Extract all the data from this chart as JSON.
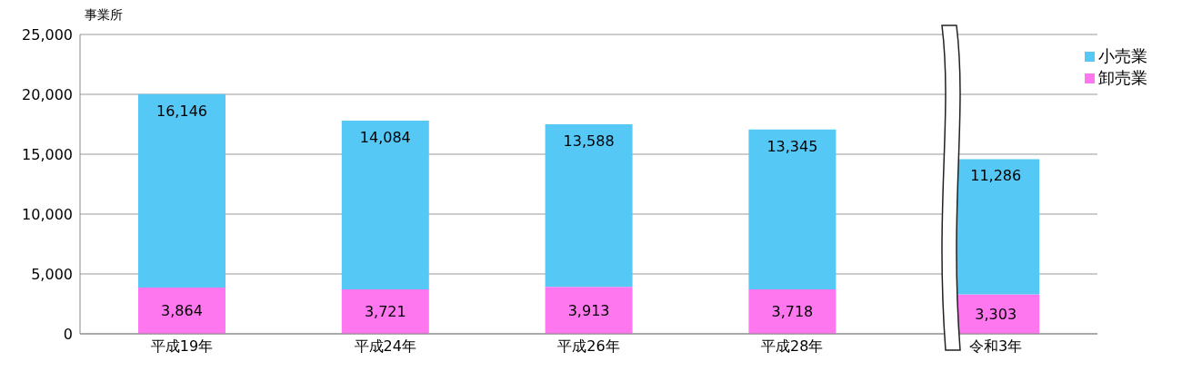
{
  "chart_data": {
    "type": "bar",
    "stacked": true,
    "ylabel": "事業所",
    "categories": [
      "平成19年",
      "平成24年",
      "平成26年",
      "平成28年",
      "令和3年"
    ],
    "series": [
      {
        "name": "卸売業",
        "color": "#ff77ee",
        "values": [
          3864,
          3721,
          3913,
          3718,
          3303
        ],
        "value_labels": [
          "3,864",
          "3,721",
          "3,913",
          "3,718",
          "3,303"
        ]
      },
      {
        "name": "小売業",
        "color": "#55c8f5",
        "values": [
          16146,
          14084,
          13588,
          13345,
          11286
        ],
        "value_labels": [
          "16,146",
          "14,084",
          "13,588",
          "13,345",
          "11,286"
        ]
      }
    ],
    "ylim": [
      0,
      25000
    ],
    "yticks": [
      {
        "value": 0,
        "label": "0"
      },
      {
        "value": 5000,
        "label": "5,000"
      },
      {
        "value": 10000,
        "label": "10,000"
      },
      {
        "value": 15000,
        "label": "15,000"
      },
      {
        "value": 20000,
        "label": "20,000"
      },
      {
        "value": 25000,
        "label": "25,000"
      }
    ],
    "grid": "y",
    "legend": "top right"
  }
}
